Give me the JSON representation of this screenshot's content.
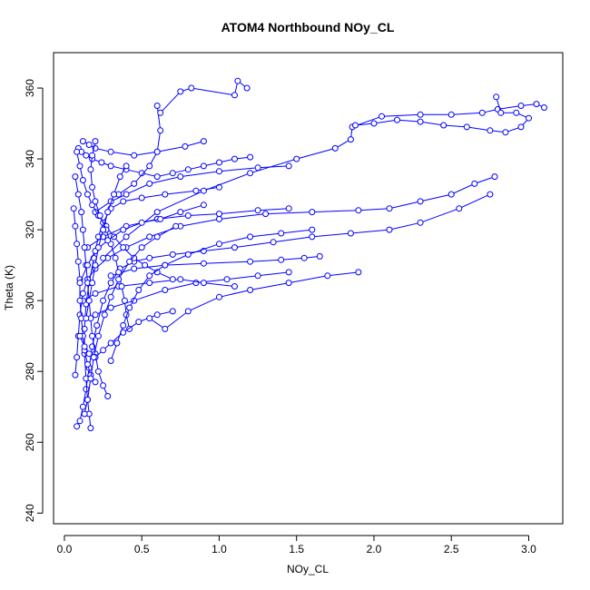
{
  "chart_data": {
    "type": "scatter",
    "title": "ATOM4 Northbound NOy_CL",
    "xlabel": "NOy_CL",
    "ylabel": "Theta (K)",
    "xlim": [
      -0.07,
      3.22
    ],
    "ylim": [
      237,
      370
    ],
    "xticks": [
      0.0,
      0.5,
      1.0,
      1.5,
      2.0,
      2.5,
      3.0
    ],
    "xtick_labels": [
      "0.0",
      "0.5",
      "1.0",
      "1.5",
      "2.0",
      "2.5",
      "3.0"
    ],
    "yticks": [
      240,
      260,
      280,
      300,
      320,
      340,
      360
    ],
    "ytick_labels": [
      "240",
      "260",
      "280",
      "300",
      "320",
      "340",
      "360"
    ],
    "grid": false,
    "legend": "none",
    "style": "points connected by lines (type='o')",
    "color": "#0000ff",
    "series": [
      {
        "points": [
          [
            0.08,
            264.5
          ],
          [
            0.1,
            266
          ],
          [
            0.12,
            270
          ],
          [
            0.14,
            275
          ],
          [
            0.16,
            281
          ],
          [
            0.18,
            287
          ],
          [
            0.21,
            293
          ],
          [
            0.25,
            300
          ],
          [
            0.3,
            305
          ],
          [
            0.36,
            309
          ],
          [
            0.45,
            311
          ],
          [
            0.55,
            312
          ],
          [
            0.7,
            313
          ],
          [
            0.9,
            314
          ],
          [
            1.1,
            315
          ],
          [
            1.35,
            316.5
          ],
          [
            1.6,
            318
          ],
          [
            1.85,
            319
          ],
          [
            2.1,
            320
          ],
          [
            2.3,
            322
          ],
          [
            2.55,
            326
          ],
          [
            2.75,
            330
          ]
        ]
      },
      {
        "points": [
          [
            0.17,
            264
          ],
          [
            0.16,
            268
          ],
          [
            0.15,
            272
          ],
          [
            0.14,
            278
          ],
          [
            0.13,
            285
          ],
          [
            0.13,
            292
          ],
          [
            0.14,
            299
          ],
          [
            0.16,
            305
          ],
          [
            0.19,
            312
          ],
          [
            0.22,
            318
          ],
          [
            0.25,
            322
          ],
          [
            0.3,
            326
          ],
          [
            0.38,
            328
          ],
          [
            0.5,
            329
          ],
          [
            0.65,
            330
          ],
          [
            0.85,
            331
          ],
          [
            1.0,
            332
          ]
        ]
      },
      {
        "points": [
          [
            0.07,
            279
          ],
          [
            0.08,
            284
          ],
          [
            0.09,
            290
          ],
          [
            0.1,
            296
          ],
          [
            0.12,
            302
          ],
          [
            0.15,
            306
          ],
          [
            0.2,
            309
          ],
          [
            0.28,
            312
          ],
          [
            0.4,
            315
          ],
          [
            0.55,
            318
          ],
          [
            0.75,
            321
          ],
          [
            1.0,
            323
          ],
          [
            1.3,
            324.5
          ],
          [
            1.6,
            325
          ],
          [
            1.9,
            325.5
          ],
          [
            2.1,
            326
          ],
          [
            2.3,
            328
          ],
          [
            2.5,
            330
          ],
          [
            2.65,
            333
          ],
          [
            2.78,
            335
          ]
        ]
      },
      {
        "points": [
          [
            0.09,
            343
          ],
          [
            0.11,
            342
          ],
          [
            0.14,
            341
          ],
          [
            0.18,
            340
          ],
          [
            0.24,
            339
          ],
          [
            0.3,
            338
          ],
          [
            0.4,
            337
          ],
          [
            0.5,
            336
          ],
          [
            0.6,
            335
          ],
          [
            0.7,
            336
          ],
          [
            0.8,
            337
          ],
          [
            0.9,
            338
          ],
          [
            1.0,
            339
          ],
          [
            1.1,
            340
          ],
          [
            1.2,
            340.5
          ]
        ]
      },
      {
        "points": [
          [
            0.12,
            345
          ],
          [
            0.16,
            344
          ],
          [
            0.2,
            343
          ],
          [
            0.3,
            342
          ],
          [
            0.45,
            341
          ],
          [
            0.6,
            342
          ],
          [
            0.78,
            343.5
          ],
          [
            0.9,
            345
          ]
        ]
      },
      {
        "points": [
          [
            0.35,
            330
          ],
          [
            0.45,
            333
          ],
          [
            0.55,
            338
          ],
          [
            0.6,
            342
          ],
          [
            0.62,
            348
          ],
          [
            0.6,
            355
          ]
        ]
      },
      {
        "points": [
          [
            0.62,
            353
          ],
          [
            0.75,
            359
          ],
          [
            0.82,
            360
          ],
          [
            1.1,
            358
          ],
          [
            1.12,
            362
          ],
          [
            1.18,
            360
          ]
        ]
      },
      {
        "points": [
          [
            0.25,
            312
          ],
          [
            0.4,
            318
          ],
          [
            0.6,
            325
          ],
          [
            0.9,
            331
          ],
          [
            1.2,
            336
          ],
          [
            1.5,
            340
          ],
          [
            1.75,
            343
          ],
          [
            1.85,
            345.5
          ],
          [
            1.86,
            349
          ],
          [
            2.05,
            352
          ],
          [
            2.3,
            352.5
          ],
          [
            2.5,
            352.5
          ],
          [
            2.7,
            353
          ],
          [
            2.8,
            354
          ],
          [
            2.95,
            355
          ],
          [
            3.05,
            355.5
          ],
          [
            3.1,
            354.5
          ]
        ]
      },
      {
        "points": [
          [
            1.88,
            349.5
          ],
          [
            2.0,
            350
          ],
          [
            2.15,
            351
          ],
          [
            2.3,
            350.5
          ],
          [
            2.45,
            349.5
          ],
          [
            2.6,
            349
          ],
          [
            2.75,
            348
          ],
          [
            2.85,
            347.5
          ],
          [
            2.95,
            349
          ],
          [
            3.0,
            351.5
          ],
          [
            2.92,
            353
          ],
          [
            2.82,
            353
          ],
          [
            2.79,
            357.5
          ]
        ]
      },
      {
        "points": [
          [
            0.3,
            307
          ],
          [
            0.45,
            309
          ],
          [
            0.65,
            310
          ],
          [
            0.9,
            310.5
          ],
          [
            1.2,
            311
          ],
          [
            1.4,
            311.5
          ],
          [
            1.55,
            312
          ],
          [
            1.65,
            312.5
          ]
        ]
      },
      {
        "points": [
          [
            0.2,
            296
          ],
          [
            0.3,
            298
          ],
          [
            0.45,
            300
          ],
          [
            0.65,
            303
          ],
          [
            0.85,
            305
          ],
          [
            1.05,
            306
          ],
          [
            1.25,
            307
          ],
          [
            1.45,
            308
          ]
        ]
      },
      {
        "points": [
          [
            0.12,
            300
          ],
          [
            0.2,
            302
          ],
          [
            0.35,
            304
          ],
          [
            0.55,
            305
          ],
          [
            0.75,
            306
          ],
          [
            0.9,
            305
          ],
          [
            1.1,
            304
          ]
        ]
      },
      {
        "points": [
          [
            0.15,
            315
          ],
          [
            0.25,
            318
          ],
          [
            0.4,
            321
          ],
          [
            0.6,
            323
          ],
          [
            0.8,
            324
          ],
          [
            1.0,
            324.5
          ],
          [
            1.25,
            325.5
          ],
          [
            1.45,
            326
          ]
        ]
      },
      {
        "points": [
          [
            0.2,
            325
          ],
          [
            0.3,
            328
          ],
          [
            0.4,
            330
          ],
          [
            0.55,
            333
          ],
          [
            0.75,
            335
          ],
          [
            1.0,
            336.5
          ],
          [
            1.25,
            337.5
          ],
          [
            1.45,
            338
          ]
        ]
      },
      {
        "points": [
          [
            0.07,
            335
          ],
          [
            0.09,
            330
          ],
          [
            0.11,
            325
          ],
          [
            0.12,
            320
          ],
          [
            0.13,
            315
          ],
          [
            0.14,
            310
          ],
          [
            0.15,
            305
          ],
          [
            0.16,
            300
          ],
          [
            0.17,
            295
          ],
          [
            0.18,
            290
          ],
          [
            0.2,
            285
          ],
          [
            0.22,
            280
          ],
          [
            0.25,
            276
          ],
          [
            0.28,
            273
          ]
        ]
      },
      {
        "points": [
          [
            0.06,
            326
          ],
          [
            0.07,
            321
          ],
          [
            0.08,
            316
          ],
          [
            0.09,
            311
          ],
          [
            0.1,
            306
          ],
          [
            0.1,
            300
          ],
          [
            0.11,
            295
          ],
          [
            0.12,
            290
          ],
          [
            0.13,
            286
          ],
          [
            0.15,
            282
          ],
          [
            0.17,
            279
          ],
          [
            0.2,
            277
          ]
        ]
      },
      {
        "points": [
          [
            0.08,
            342
          ],
          [
            0.1,
            338
          ],
          [
            0.12,
            334
          ],
          [
            0.15,
            330
          ],
          [
            0.18,
            327
          ],
          [
            0.22,
            324
          ],
          [
            0.27,
            321
          ],
          [
            0.32,
            318
          ],
          [
            0.38,
            315
          ],
          [
            0.45,
            312
          ],
          [
            0.52,
            310
          ],
          [
            0.6,
            308
          ],
          [
            0.7,
            306
          ]
        ]
      },
      {
        "points": [
          [
            0.2,
            345
          ],
          [
            0.18,
            341
          ],
          [
            0.17,
            337
          ],
          [
            0.18,
            332
          ],
          [
            0.2,
            328
          ],
          [
            0.23,
            324
          ],
          [
            0.27,
            320
          ],
          [
            0.3,
            316
          ],
          [
            0.33,
            312
          ],
          [
            0.35,
            308
          ],
          [
            0.37,
            304
          ],
          [
            0.39,
            300
          ],
          [
            0.4,
            296
          ],
          [
            0.42,
            292
          ]
        ]
      },
      {
        "points": [
          [
            0.1,
            290
          ],
          [
            0.13,
            287
          ],
          [
            0.16,
            285
          ],
          [
            0.2,
            284
          ],
          [
            0.25,
            286
          ],
          [
            0.3,
            288
          ],
          [
            0.38,
            291
          ],
          [
            0.48,
            294
          ],
          [
            0.6,
            296
          ],
          [
            0.7,
            297
          ]
        ]
      },
      {
        "points": [
          [
            0.55,
            295
          ],
          [
            0.65,
            292
          ],
          [
            0.8,
            297
          ],
          [
            1.0,
            301
          ],
          [
            1.2,
            303
          ],
          [
            1.45,
            305
          ],
          [
            1.7,
            307
          ],
          [
            1.9,
            308
          ]
        ]
      },
      {
        "points": [
          [
            0.3,
            283
          ],
          [
            0.34,
            288
          ],
          [
            0.38,
            293
          ],
          [
            0.42,
            298
          ],
          [
            0.48,
            303
          ],
          [
            0.55,
            307
          ],
          [
            0.65,
            310
          ],
          [
            0.8,
            313
          ],
          [
            1.0,
            316
          ],
          [
            1.2,
            318
          ],
          [
            1.4,
            319
          ],
          [
            1.6,
            320
          ]
        ]
      },
      {
        "points": [
          [
            0.13,
            268
          ],
          [
            0.15,
            272
          ],
          [
            0.17,
            278
          ],
          [
            0.19,
            284
          ],
          [
            0.22,
            290
          ],
          [
            0.26,
            296
          ],
          [
            0.3,
            301
          ],
          [
            0.35,
            306
          ],
          [
            0.42,
            311
          ],
          [
            0.5,
            315
          ],
          [
            0.6,
            318
          ],
          [
            0.72,
            321
          ]
        ]
      },
      {
        "points": [
          [
            0.1,
            305
          ],
          [
            0.15,
            310
          ],
          [
            0.2,
            314
          ],
          [
            0.28,
            317
          ],
          [
            0.38,
            320
          ],
          [
            0.5,
            322
          ],
          [
            0.62,
            323
          ],
          [
            0.75,
            325
          ],
          [
            0.9,
            327
          ]
        ]
      },
      {
        "points": [
          [
            0.14,
            295
          ],
          [
            0.16,
            300
          ],
          [
            0.18,
            305
          ],
          [
            0.2,
            310
          ],
          [
            0.22,
            315
          ],
          [
            0.25,
            320
          ],
          [
            0.28,
            325
          ],
          [
            0.32,
            330
          ],
          [
            0.36,
            335
          ],
          [
            0.4,
            338
          ]
        ]
      }
    ]
  }
}
